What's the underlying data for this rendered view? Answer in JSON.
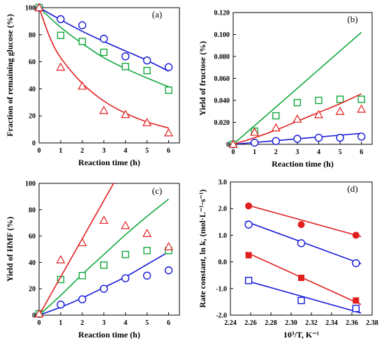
{
  "colors": {
    "red": "#e01e1e",
    "green": "#11a83c",
    "blue": "#1418d8"
  },
  "chart_data": [
    {
      "panel_label": "(a)",
      "type": "scatter",
      "xlabel": "Reaction time (h)",
      "ylabel": "Fraction of remaining glucose (%)",
      "xlim": [
        0,
        6.5
      ],
      "ylim": [
        0,
        100
      ],
      "xticks": [
        "0",
        "1",
        "2",
        "3",
        "4",
        "5",
        "6"
      ],
      "yticks": [
        "0",
        "20",
        "40",
        "60",
        "80",
        "100"
      ],
      "series": [
        {
          "color": "blue",
          "marker": "circle",
          "points": [
            [
              0,
              100
            ],
            [
              1,
              91.5
            ],
            [
              2,
              87
            ],
            [
              3,
              77
            ],
            [
              4,
              64
            ],
            [
              5,
              61
            ],
            [
              6,
              56
            ]
          ],
          "fit": [
            [
              0,
              100
            ],
            [
              1,
              91
            ],
            [
              2,
              82.5
            ],
            [
              3,
              75
            ],
            [
              4,
              68
            ],
            [
              5,
              61
            ],
            [
              6,
              53
            ]
          ]
        },
        {
          "color": "green",
          "marker": "square",
          "points": [
            [
              0,
              100
            ],
            [
              1,
              79.5
            ],
            [
              2,
              75
            ],
            [
              3,
              67
            ],
            [
              4,
              56.5
            ],
            [
              5,
              53.5
            ],
            [
              6,
              39
            ]
          ],
          "fit": [
            [
              0,
              100
            ],
            [
              1,
              85.5
            ],
            [
              2,
              73.5
            ],
            [
              3,
              63
            ],
            [
              4,
              55
            ],
            [
              5,
              48
            ],
            [
              6,
              41.5
            ]
          ]
        },
        {
          "color": "red",
          "marker": "triangle",
          "points": [
            [
              0,
              100
            ],
            [
              1,
              56
            ],
            [
              2,
              42
            ],
            [
              3,
              24
            ],
            [
              4,
              21
            ],
            [
              5,
              15
            ],
            [
              6,
              7.5
            ]
          ],
          "fit": [
            [
              0,
              100
            ],
            [
              0.5,
              78
            ],
            [
              1,
              63
            ],
            [
              2,
              44
            ],
            [
              3,
              31
            ],
            [
              4,
              22
            ],
            [
              5,
              15.5
            ],
            [
              6,
              11
            ]
          ]
        }
      ]
    },
    {
      "panel_label": "(b)",
      "type": "scatter",
      "xlabel": "Reaction time (h)",
      "ylabel": "Yield of fructose (%)",
      "xlim": [
        0,
        6.5
      ],
      "ylim": [
        0,
        0.12
      ],
      "xticks": [
        "0",
        "1",
        "2",
        "3",
        "4",
        "5",
        "6"
      ],
      "yticks": [
        "0",
        "0.020",
        "0.040",
        "0.060",
        "0.080",
        "0.100",
        "0.120"
      ],
      "series": [
        {
          "color": "blue",
          "marker": "circle",
          "points": [
            [
              0,
              0
            ],
            [
              1,
              0.0015
            ],
            [
              2,
              0.003
            ],
            [
              3,
              0.005
            ],
            [
              4,
              0.006
            ],
            [
              5,
              0.006
            ],
            [
              6,
              0.007
            ]
          ],
          "fit": [
            [
              0,
              0
            ],
            [
              6,
              0.01
            ]
          ]
        },
        {
          "color": "green",
          "marker": "square",
          "points": [
            [
              0,
              0
            ],
            [
              1,
              0.012
            ],
            [
              2,
              0.026
            ],
            [
              3,
              0.038
            ],
            [
              4,
              0.04
            ],
            [
              5,
              0.041
            ],
            [
              6,
              0.041
            ]
          ],
          "fit": [
            [
              0,
              0
            ],
            [
              6,
              0.102
            ]
          ]
        },
        {
          "color": "red",
          "marker": "triangle",
          "points": [
            [
              0,
              0
            ],
            [
              1,
              0.011
            ],
            [
              2,
              0.015
            ],
            [
              3,
              0.023
            ],
            [
              4,
              0.027
            ],
            [
              5,
              0.03
            ],
            [
              6,
              0.032
            ]
          ],
          "fit": [
            [
              0,
              0
            ],
            [
              1,
              0.006
            ],
            [
              2,
              0.013
            ],
            [
              3,
              0.021
            ],
            [
              4,
              0.029
            ],
            [
              5,
              0.037
            ],
            [
              6,
              0.046
            ]
          ]
        }
      ]
    },
    {
      "panel_label": "(c)",
      "type": "scatter",
      "xlabel": "Reaction time (h)",
      "ylabel": "Yield of HMF (%)",
      "xlim": [
        0,
        6.5
      ],
      "ylim": [
        0,
        100
      ],
      "xticks": [
        "0",
        "1",
        "2",
        "3",
        "4",
        "5",
        "6"
      ],
      "yticks": [
        "0",
        "20",
        "40",
        "60",
        "80",
        "100"
      ],
      "series": [
        {
          "color": "blue",
          "marker": "circle",
          "points": [
            [
              0,
              1
            ],
            [
              1,
              8
            ],
            [
              2,
              12
            ],
            [
              3,
              20
            ],
            [
              4,
              28
            ],
            [
              5,
              30
            ],
            [
              6,
              34
            ]
          ],
          "fit": [
            [
              0,
              0
            ],
            [
              1,
              6
            ],
            [
              2,
              13
            ],
            [
              3,
              21
            ],
            [
              4,
              29
            ],
            [
              5,
              38.5
            ],
            [
              6,
              48
            ]
          ]
        },
        {
          "color": "green",
          "marker": "square",
          "points": [
            [
              0,
              1
            ],
            [
              1,
              27
            ],
            [
              2,
              30
            ],
            [
              3,
              38
            ],
            [
              4,
              46
            ],
            [
              5,
              49
            ],
            [
              6,
              49
            ]
          ],
          "fit": [
            [
              0,
              0
            ],
            [
              1,
              15
            ],
            [
              2,
              31
            ],
            [
              3,
              46
            ],
            [
              4,
              61
            ],
            [
              5,
              75
            ],
            [
              6,
              88
            ]
          ]
        },
        {
          "color": "red",
          "marker": "triangle",
          "points": [
            [
              0,
              1
            ],
            [
              1,
              42
            ],
            [
              2,
              55
            ],
            [
              3,
              72
            ],
            [
              4,
              68
            ],
            [
              5,
              62
            ],
            [
              6,
              52
            ]
          ],
          "fit": [
            [
              0,
              0
            ],
            [
              1,
              29
            ],
            [
              2,
              58
            ],
            [
              3,
              87
            ],
            [
              3.45,
              100
            ]
          ]
        }
      ]
    },
    {
      "panel_label": "(d)",
      "type": "scatter",
      "xlabel": "10³/T, K⁻¹",
      "ylabel": "Rate constant, ln k, (mol·L⁻¹·s⁻¹)",
      "xlim": [
        2.24,
        2.38
      ],
      "ylim": [
        -2.0,
        3.0
      ],
      "xticks": [
        "2.24",
        "2.26",
        "2.28",
        "2.30",
        "2.32",
        "2.34",
        "2.36",
        "2.38"
      ],
      "yticks": [
        "-2.0",
        "-1.0",
        "0.0",
        "1.0",
        "2.0",
        "3.0"
      ],
      "series": [
        {
          "color": "red",
          "marker": "filled-circle",
          "points": [
            [
              2.258,
              2.1
            ],
            [
              2.31,
              1.4
            ],
            [
              2.364,
              1.0
            ]
          ],
          "fit": [
            [
              2.255,
              2.15
            ],
            [
              2.369,
              0.95
            ]
          ]
        },
        {
          "color": "blue",
          "marker": "circle",
          "points": [
            [
              2.258,
              1.4
            ],
            [
              2.31,
              0.7
            ],
            [
              2.364,
              -0.05
            ]
          ],
          "fit": [
            [
              2.255,
              1.52
            ],
            [
              2.369,
              -0.07
            ]
          ]
        },
        {
          "color": "red",
          "marker": "filled-square",
          "points": [
            [
              2.258,
              0.25
            ],
            [
              2.31,
              -0.6
            ],
            [
              2.364,
              -1.45
            ]
          ],
          "fit": [
            [
              2.255,
              0.37
            ],
            [
              2.369,
              -1.6
            ]
          ]
        },
        {
          "color": "blue",
          "marker": "square",
          "points": [
            [
              2.258,
              -0.7
            ],
            [
              2.31,
              -1.45
            ],
            [
              2.364,
              -1.75
            ]
          ],
          "fit": [
            [
              2.255,
              -0.7
            ],
            [
              2.369,
              -1.92
            ]
          ]
        }
      ]
    }
  ]
}
